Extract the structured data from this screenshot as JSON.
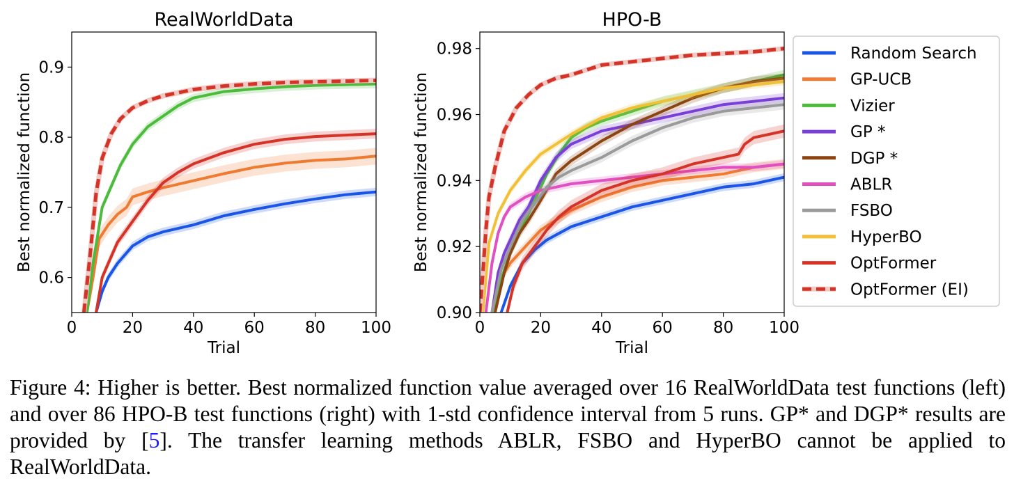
{
  "colors": {
    "Random Search": "#1a55e6",
    "GP-UCB": "#ef7b32",
    "Vizier": "#4cbb3c",
    "GP *": "#7a3fd6",
    "DGP *": "#8b4513",
    "ABLR": "#e050c0",
    "FSBO": "#9a9a9a",
    "HyperBO": "#f2c037",
    "OptFormer": "#d43328",
    "OptFormer (EI)": "#d43328"
  },
  "legend": {
    "placement": "right-outside",
    "entries": [
      {
        "label": "Random Search",
        "dashed": false
      },
      {
        "label": "GP-UCB",
        "dashed": false
      },
      {
        "label": "Vizier",
        "dashed": false
      },
      {
        "label": "GP *",
        "dashed": false
      },
      {
        "label": "DGP *",
        "dashed": false
      },
      {
        "label": "ABLR",
        "dashed": false
      },
      {
        "label": "FSBO",
        "dashed": false
      },
      {
        "label": "HyperBO",
        "dashed": false
      },
      {
        "label": "OptFormer",
        "dashed": false
      },
      {
        "label": "OptFormer (EI)",
        "dashed": true
      }
    ]
  },
  "chart_data": [
    {
      "type": "line",
      "title": "RealWorldData",
      "xlabel": "Trial",
      "ylabel": "Best normalized function",
      "xlim": [
        0,
        100
      ],
      "ylim": [
        0.55,
        0.95
      ],
      "xticks": [
        0,
        20,
        40,
        60,
        80,
        100
      ],
      "yticks": [
        0.6,
        0.7,
        0.8,
        0.9
      ],
      "ytick_labels": [
        "0.6",
        "0.7",
        "0.8",
        "0.9"
      ],
      "grid": false,
      "series": [
        {
          "name": "Random Search",
          "x": [
            8,
            10,
            12,
            15,
            20,
            25,
            30,
            35,
            40,
            50,
            60,
            70,
            80,
            90,
            100
          ],
          "y": [
            0.55,
            0.58,
            0.6,
            0.62,
            0.645,
            0.658,
            0.665,
            0.67,
            0.675,
            0.688,
            0.697,
            0.705,
            0.712,
            0.718,
            0.722
          ],
          "band": 0.006
        },
        {
          "name": "GP-UCB",
          "x": [
            5,
            7,
            9,
            12,
            15,
            18,
            20,
            25,
            30,
            40,
            50,
            60,
            70,
            80,
            90,
            100
          ],
          "y": [
            0.55,
            0.6,
            0.655,
            0.675,
            0.69,
            0.7,
            0.715,
            0.722,
            0.728,
            0.738,
            0.748,
            0.757,
            0.763,
            0.767,
            0.769,
            0.773
          ],
          "band": 0.012
        },
        {
          "name": "Vizier",
          "x": [
            5,
            7,
            10,
            13,
            16,
            20,
            25,
            30,
            35,
            40,
            50,
            60,
            70,
            80,
            90,
            100
          ],
          "y": [
            0.55,
            0.62,
            0.7,
            0.73,
            0.76,
            0.79,
            0.815,
            0.83,
            0.845,
            0.856,
            0.865,
            0.869,
            0.872,
            0.874,
            0.875,
            0.876
          ],
          "band": 0.006
        },
        {
          "name": "OptFormer",
          "x": [
            8,
            10,
            12,
            15,
            20,
            25,
            30,
            35,
            40,
            50,
            60,
            70,
            80,
            90,
            100
          ],
          "y": [
            0.55,
            0.6,
            0.62,
            0.65,
            0.68,
            0.71,
            0.735,
            0.75,
            0.762,
            0.778,
            0.79,
            0.797,
            0.801,
            0.803,
            0.805
          ],
          "band": 0.007
        },
        {
          "name": "OptFormer (EI)",
          "x": [
            4,
            6,
            8,
            10,
            13,
            16,
            20,
            25,
            30,
            40,
            50,
            60,
            70,
            80,
            90,
            100
          ],
          "y": [
            0.55,
            0.63,
            0.72,
            0.77,
            0.805,
            0.826,
            0.842,
            0.852,
            0.859,
            0.868,
            0.873,
            0.876,
            0.878,
            0.879,
            0.88,
            0.881
          ],
          "band": 0.004
        }
      ]
    },
    {
      "type": "line",
      "title": "HPO-B",
      "xlabel": "Trial",
      "ylabel": "Best normalized function",
      "xlim": [
        0,
        100
      ],
      "ylim": [
        0.9,
        0.985
      ],
      "xticks": [
        0,
        20,
        40,
        60,
        80,
        100
      ],
      "yticks": [
        0.9,
        0.92,
        0.94,
        0.96,
        0.98
      ],
      "ytick_labels": [
        "0.90",
        "0.92",
        "0.94",
        "0.96",
        "0.98"
      ],
      "grid": false,
      "series": [
        {
          "name": "Random Search",
          "x": [
            7,
            10,
            14,
            18,
            22,
            26,
            30,
            40,
            50,
            60,
            70,
            80,
            90,
            100
          ],
          "y": [
            0.9,
            0.908,
            0.915,
            0.919,
            0.922,
            0.924,
            0.926,
            0.929,
            0.932,
            0.934,
            0.936,
            0.938,
            0.939,
            0.941
          ],
          "band": 0.0012
        },
        {
          "name": "GP-UCB",
          "x": [
            4,
            6,
            8,
            10,
            13,
            16,
            20,
            25,
            30,
            40,
            50,
            60,
            70,
            80,
            90,
            100
          ],
          "y": [
            0.9,
            0.907,
            0.912,
            0.915,
            0.918,
            0.921,
            0.925,
            0.928,
            0.931,
            0.935,
            0.938,
            0.94,
            0.941,
            0.942,
            0.944,
            0.945
          ],
          "band": 0.0015
        },
        {
          "name": "Vizier",
          "x": [
            4,
            7,
            10,
            14,
            18,
            22,
            26,
            30,
            35,
            40,
            50,
            60,
            70,
            80,
            90,
            100
          ],
          "y": [
            0.9,
            0.91,
            0.918,
            0.926,
            0.934,
            0.942,
            0.948,
            0.953,
            0.956,
            0.958,
            0.961,
            0.964,
            0.966,
            0.968,
            0.97,
            0.972
          ],
          "band": 0.0015
        },
        {
          "name": "GP *",
          "x": [
            4,
            6,
            8,
            10,
            13,
            16,
            20,
            25,
            30,
            40,
            50,
            60,
            70,
            80,
            90,
            100
          ],
          "y": [
            0.9,
            0.912,
            0.918,
            0.922,
            0.928,
            0.932,
            0.94,
            0.947,
            0.951,
            0.955,
            0.957,
            0.959,
            0.961,
            0.963,
            0.964,
            0.965
          ],
          "band": 0.0015
        },
        {
          "name": "DGP *",
          "x": [
            5,
            8,
            10,
            13,
            16,
            20,
            25,
            30,
            35,
            40,
            50,
            60,
            70,
            80,
            90,
            100
          ],
          "y": [
            0.9,
            0.912,
            0.918,
            0.924,
            0.928,
            0.934,
            0.942,
            0.946,
            0.949,
            0.952,
            0.957,
            0.961,
            0.965,
            0.968,
            0.97,
            0.971
          ],
          "band": 0.0015
        },
        {
          "name": "ABLR",
          "x": [
            2,
            4,
            6,
            8,
            10,
            15,
            20,
            30,
            40,
            50,
            60,
            70,
            80,
            90,
            100
          ],
          "y": [
            0.9,
            0.915,
            0.924,
            0.929,
            0.932,
            0.935,
            0.937,
            0.939,
            0.94,
            0.941,
            0.942,
            0.943,
            0.944,
            0.944,
            0.945
          ],
          "band": 0.0012
        },
        {
          "name": "FSBO",
          "x": [
            4,
            7,
            10,
            14,
            18,
            22,
            26,
            30,
            35,
            40,
            50,
            60,
            70,
            80,
            90,
            100
          ],
          "y": [
            0.9,
            0.913,
            0.92,
            0.928,
            0.933,
            0.938,
            0.941,
            0.943,
            0.945,
            0.947,
            0.952,
            0.956,
            0.959,
            0.961,
            0.962,
            0.963
          ],
          "band": 0.0015
        },
        {
          "name": "HyperBO",
          "x": [
            1,
            3,
            6,
            10,
            15,
            20,
            25,
            30,
            40,
            50,
            60,
            70,
            80,
            90,
            100
          ],
          "y": [
            0.9,
            0.921,
            0.93,
            0.937,
            0.943,
            0.948,
            0.951,
            0.954,
            0.959,
            0.962,
            0.964,
            0.966,
            0.968,
            0.969,
            0.97
          ],
          "band": 0.0012
        },
        {
          "name": "OptFormer",
          "x": [
            9,
            11,
            14,
            18,
            22,
            26,
            30,
            40,
            50,
            60,
            70,
            80,
            85,
            87,
            90,
            95,
            100
          ],
          "y": [
            0.9,
            0.908,
            0.915,
            0.92,
            0.925,
            0.929,
            0.932,
            0.937,
            0.94,
            0.942,
            0.945,
            0.947,
            0.948,
            0.951,
            0.953,
            0.954,
            0.955
          ],
          "band": 0.002
        },
        {
          "name": "OptFormer (EI)",
          "x": [
            0,
            1,
            2,
            3,
            5,
            8,
            12,
            16,
            20,
            25,
            30,
            40,
            50,
            60,
            70,
            80,
            90,
            100
          ],
          "y": [
            0.9,
            0.912,
            0.925,
            0.935,
            0.944,
            0.955,
            0.962,
            0.966,
            0.969,
            0.971,
            0.972,
            0.975,
            0.976,
            0.977,
            0.978,
            0.9785,
            0.979,
            0.98
          ],
          "band": 0.0006
        }
      ]
    }
  ],
  "caption": {
    "label": "Figure 4:",
    "text_before_ref": "Higher is better. Best normalized function value averaged over 16 RealWorldData test functions (left) and over 86 HPO-B test functions (right) with 1-std confidence interval from 5 runs. GP* and DGP* results are provided by [",
    "ref": "5",
    "text_after_ref": "]. The transfer learning methods ABLR, FSBO and HyperBO cannot be applied to RealWorldData."
  }
}
